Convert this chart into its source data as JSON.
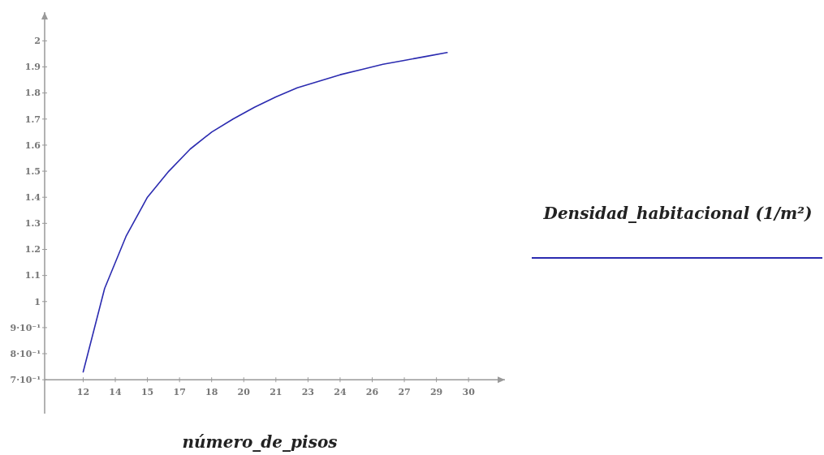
{
  "chart_data": {
    "type": "line",
    "xlabel": "número_de_pisos",
    "x": [
      12,
      13,
      14,
      15,
      16,
      17,
      18,
      19,
      20,
      21,
      22,
      23,
      24,
      25,
      26,
      27,
      28,
      29
    ],
    "series": [
      {
        "name": "Densidad_habitacional (1/m²)",
        "color": "#2b2bb0",
        "values": [
          0.73,
          1.05,
          1.25,
          1.4,
          1.5,
          1.585,
          1.65,
          1.7,
          1.745,
          1.785,
          1.82,
          1.845,
          1.87,
          1.89,
          1.91,
          1.925,
          1.94,
          1.955
        ]
      }
    ],
    "xlim": [
      10.2,
      31.7
    ],
    "ylim": [
      0.57,
      2.11
    ],
    "xticks": [
      12,
      {
        "value": 13.5,
        "label": "14"
      },
      15,
      {
        "value": 16.5,
        "label": "17"
      },
      18,
      {
        "value": 19.5,
        "label": "20"
      },
      21,
      {
        "value": 22.5,
        "label": "23"
      },
      24,
      {
        "value": 25.5,
        "label": "26"
      },
      27,
      {
        "value": 28.5,
        "label": "29"
      },
      30
    ],
    "yticks": [
      {
        "value": 0.7,
        "label": "7·10⁻¹"
      },
      {
        "value": 0.8,
        "label": "8·10⁻¹"
      },
      {
        "value": 0.9,
        "label": "9·10⁻¹"
      },
      1,
      1.1,
      1.2,
      1.3,
      1.4,
      1.5,
      1.6,
      1.7,
      1.8,
      1.9,
      2
    ],
    "grid": false,
    "legend": "right",
    "marker": "none",
    "line_style": "solid"
  }
}
